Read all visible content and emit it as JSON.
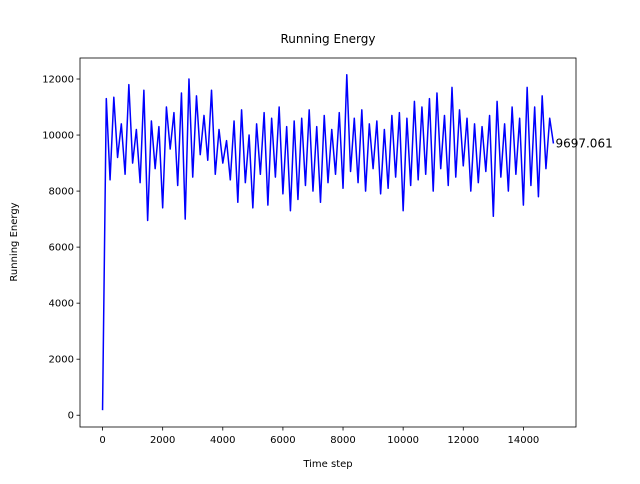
{
  "chart_data": {
    "type": "line",
    "title": "Running Energy",
    "x_label": "Time step",
    "y_label": "Running Energy",
    "x": [
      0,
      125,
      250,
      375,
      500,
      625,
      750,
      875,
      1000,
      1125,
      1250,
      1375,
      1500,
      1625,
      1750,
      1875,
      2000,
      2125,
      2250,
      2375,
      2500,
      2625,
      2750,
      2875,
      3000,
      3125,
      3250,
      3375,
      3500,
      3625,
      3750,
      3875,
      4000,
      4125,
      4250,
      4375,
      4500,
      4625,
      4750,
      4875,
      5000,
      5125,
      5250,
      5375,
      5500,
      5625,
      5750,
      5875,
      6000,
      6125,
      6250,
      6375,
      6500,
      6625,
      6750,
      6875,
      7000,
      7125,
      7250,
      7375,
      7500,
      7625,
      7750,
      7875,
      8000,
      8125,
      8250,
      8375,
      8500,
      8625,
      8750,
      8875,
      9000,
      9125,
      9250,
      9375,
      9500,
      9625,
      9750,
      9875,
      10000,
      10125,
      10250,
      10375,
      10500,
      10625,
      10750,
      10875,
      11000,
      11125,
      11250,
      11375,
      11500,
      11625,
      11750,
      11875,
      12000,
      12125,
      12250,
      12375,
      12500,
      12625,
      12750,
      12875,
      13000,
      13125,
      13250,
      13375,
      13500,
      13625,
      13750,
      13875,
      14000,
      14125,
      14250,
      14375,
      14500,
      14625,
      14750,
      14875,
      15000
    ],
    "series": [
      {
        "name": "Running Energy",
        "color": "#0000ff",
        "values": [
          180,
          11300,
          8400,
          11350,
          9200,
          10400,
          8600,
          11800,
          9000,
          10200,
          8300,
          11600,
          6950,
          10500,
          8800,
          10300,
          7400,
          11000,
          9500,
          10800,
          8200,
          11500,
          7000,
          12000,
          8500,
          11400,
          9300,
          10700,
          9100,
          11600,
          8600,
          10200,
          9000,
          9800,
          8400,
          10500,
          7600,
          10900,
          8300,
          10000,
          7400,
          10400,
          8600,
          10800,
          7500,
          10600,
          8500,
          11000,
          7900,
          10300,
          7300,
          10500,
          7700,
          10600,
          8200,
          10900,
          8000,
          10300,
          7600,
          10700,
          8300,
          10200,
          8600,
          10800,
          8100,
          12150,
          8700,
          10600,
          8300,
          10900,
          8000,
          10400,
          8800,
          10500,
          7900,
          10200,
          8100,
          10700,
          8500,
          10800,
          7300,
          10600,
          8200,
          11200,
          8400,
          11000,
          8600,
          11300,
          8000,
          11500,
          8800,
          10700,
          8200,
          11700,
          8500,
          10900,
          8900,
          10600,
          8000,
          10400,
          8300,
          10300,
          8700,
          10700,
          7100,
          11200,
          8500,
          10400,
          8000,
          11000,
          8600,
          10600,
          7500,
          11700,
          8200,
          11000,
          7800,
          11400,
          8800,
          10600,
          9697.061
        ]
      }
    ],
    "xlim": [
      -750,
      15750
    ],
    "ylim": [
      -420,
      12750
    ],
    "xticks": [
      0,
      2000,
      4000,
      6000,
      8000,
      10000,
      12000,
      14000
    ],
    "yticks": [
      0,
      2000,
      4000,
      6000,
      8000,
      10000,
      12000
    ],
    "grid": false
  }
}
